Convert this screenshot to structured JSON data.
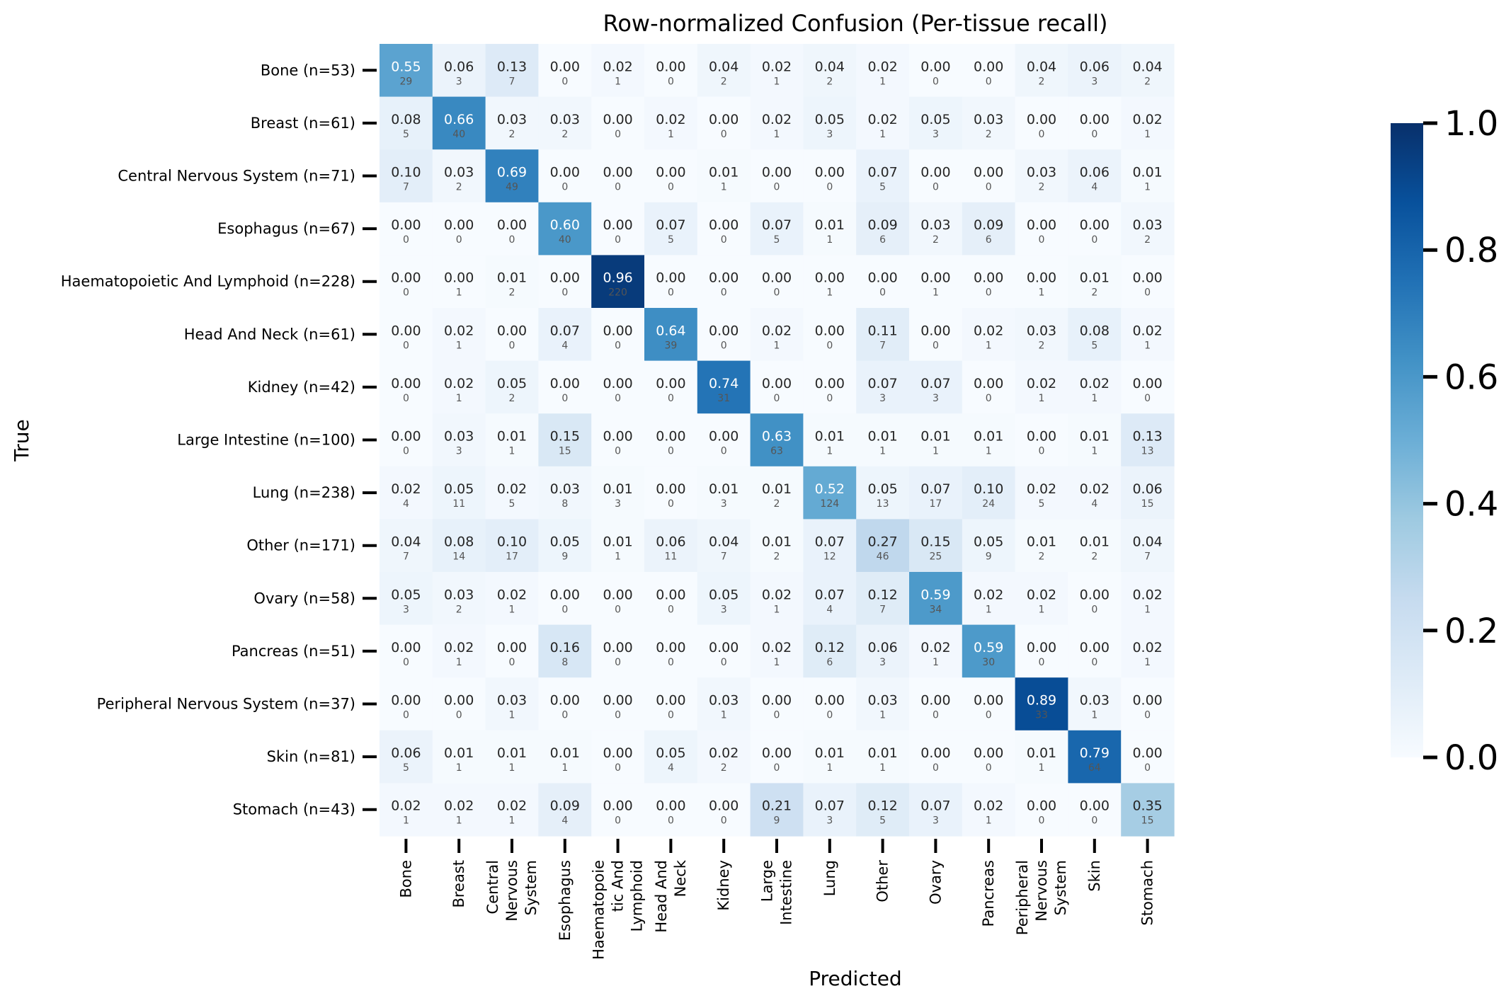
{
  "chart_data": {
    "type": "heatmap",
    "title": "Row-normalized Confusion (Per-tissue recall)",
    "xlabel": "Predicted",
    "ylabel": "True",
    "row_labels": [
      "Bone (n=53)",
      "Breast (n=61)",
      "Central Nervous System (n=71)",
      "Esophagus (n=67)",
      "Haematopoietic And Lymphoid (n=228)",
      "Head And Neck (n=61)",
      "Kidney (n=42)",
      "Large Intestine (n=100)",
      "Lung (n=238)",
      "Other (n=171)",
      "Ovary (n=58)",
      "Pancreas (n=51)",
      "Peripheral Nervous System (n=37)",
      "Skin (n=81)",
      "Stomach (n=43)"
    ],
    "col_labels": [
      [
        "Bone"
      ],
      [
        "Breast"
      ],
      [
        "Central",
        "Nervous",
        "System"
      ],
      [
        "Esophagus"
      ],
      [
        "Haematopoie",
        "tic And",
        "Lymphoid"
      ],
      [
        "Head And",
        "Neck"
      ],
      [
        "Kidney"
      ],
      [
        "Large",
        "Intestine"
      ],
      [
        "Lung"
      ],
      [
        "Other"
      ],
      [
        "Ovary"
      ],
      [
        "Pancreas"
      ],
      [
        "Peripheral",
        "Nervous",
        "System"
      ],
      [
        "Skin"
      ],
      [
        "Stomach"
      ]
    ],
    "values": [
      [
        0.55,
        0.06,
        0.13,
        0.0,
        0.02,
        0.0,
        0.04,
        0.02,
        0.04,
        0.02,
        0.0,
        0.0,
        0.04,
        0.06,
        0.04
      ],
      [
        0.08,
        0.66,
        0.03,
        0.03,
        0.0,
        0.02,
        0.0,
        0.02,
        0.05,
        0.02,
        0.05,
        0.03,
        0.0,
        0.0,
        0.02
      ],
      [
        0.1,
        0.03,
        0.69,
        0.0,
        0.0,
        0.0,
        0.01,
        0.0,
        0.0,
        0.07,
        0.0,
        0.0,
        0.03,
        0.06,
        0.01
      ],
      [
        0.0,
        0.0,
        0.0,
        0.6,
        0.0,
        0.07,
        0.0,
        0.07,
        0.01,
        0.09,
        0.03,
        0.09,
        0.0,
        0.0,
        0.03
      ],
      [
        0.0,
        0.0,
        0.01,
        0.0,
        0.96,
        0.0,
        0.0,
        0.0,
        0.0,
        0.0,
        0.0,
        0.0,
        0.0,
        0.01,
        0.0
      ],
      [
        0.0,
        0.02,
        0.0,
        0.07,
        0.0,
        0.64,
        0.0,
        0.02,
        0.0,
        0.11,
        0.0,
        0.02,
        0.03,
        0.08,
        0.02
      ],
      [
        0.0,
        0.02,
        0.05,
        0.0,
        0.0,
        0.0,
        0.74,
        0.0,
        0.0,
        0.07,
        0.07,
        0.0,
        0.02,
        0.02,
        0.0
      ],
      [
        0.0,
        0.03,
        0.01,
        0.15,
        0.0,
        0.0,
        0.0,
        0.63,
        0.01,
        0.01,
        0.01,
        0.01,
        0.0,
        0.01,
        0.13
      ],
      [
        0.02,
        0.05,
        0.02,
        0.03,
        0.01,
        0.0,
        0.01,
        0.01,
        0.52,
        0.05,
        0.07,
        0.1,
        0.02,
        0.02,
        0.06
      ],
      [
        0.04,
        0.08,
        0.1,
        0.05,
        0.01,
        0.06,
        0.04,
        0.01,
        0.07,
        0.27,
        0.15,
        0.05,
        0.01,
        0.01,
        0.04
      ],
      [
        0.05,
        0.03,
        0.02,
        0.0,
        0.0,
        0.0,
        0.05,
        0.02,
        0.07,
        0.12,
        0.59,
        0.02,
        0.02,
        0.0,
        0.02
      ],
      [
        0.0,
        0.02,
        0.0,
        0.16,
        0.0,
        0.0,
        0.0,
        0.02,
        0.12,
        0.06,
        0.02,
        0.59,
        0.0,
        0.0,
        0.02
      ],
      [
        0.0,
        0.0,
        0.03,
        0.0,
        0.0,
        0.0,
        0.03,
        0.0,
        0.0,
        0.03,
        0.0,
        0.0,
        0.89,
        0.03,
        0.0
      ],
      [
        0.06,
        0.01,
        0.01,
        0.01,
        0.0,
        0.05,
        0.02,
        0.0,
        0.01,
        0.01,
        0.0,
        0.0,
        0.01,
        0.79,
        0.0
      ],
      [
        0.02,
        0.02,
        0.02,
        0.09,
        0.0,
        0.0,
        0.0,
        0.21,
        0.07,
        0.12,
        0.07,
        0.02,
        0.0,
        0.0,
        0.35
      ]
    ],
    "counts": [
      [
        29,
        3,
        7,
        0,
        1,
        0,
        2,
        1,
        2,
        1,
        0,
        0,
        2,
        3,
        2
      ],
      [
        5,
        40,
        2,
        2,
        0,
        1,
        0,
        1,
        3,
        1,
        3,
        2,
        0,
        0,
        1
      ],
      [
        7,
        2,
        49,
        0,
        0,
        0,
        1,
        0,
        0,
        5,
        0,
        0,
        2,
        4,
        1
      ],
      [
        0,
        0,
        0,
        40,
        0,
        5,
        0,
        5,
        1,
        6,
        2,
        6,
        0,
        0,
        2
      ],
      [
        0,
        1,
        2,
        0,
        220,
        0,
        0,
        0,
        1,
        0,
        1,
        0,
        1,
        2,
        0
      ],
      [
        0,
        1,
        0,
        4,
        0,
        39,
        0,
        1,
        0,
        7,
        0,
        1,
        2,
        5,
        1
      ],
      [
        0,
        1,
        2,
        0,
        0,
        0,
        31,
        0,
        0,
        3,
        3,
        0,
        1,
        1,
        0
      ],
      [
        0,
        3,
        1,
        15,
        0,
        0,
        0,
        63,
        1,
        1,
        1,
        1,
        0,
        1,
        13
      ],
      [
        4,
        11,
        5,
        8,
        3,
        0,
        3,
        2,
        124,
        13,
        17,
        24,
        5,
        4,
        15
      ],
      [
        7,
        14,
        17,
        9,
        1,
        11,
        7,
        2,
        12,
        46,
        25,
        9,
        2,
        2,
        7
      ],
      [
        3,
        2,
        1,
        0,
        0,
        0,
        3,
        1,
        4,
        7,
        34,
        1,
        1,
        0,
        1
      ],
      [
        0,
        1,
        0,
        8,
        0,
        0,
        0,
        1,
        6,
        3,
        1,
        30,
        0,
        0,
        1
      ],
      [
        0,
        0,
        1,
        0,
        0,
        0,
        1,
        0,
        0,
        1,
        0,
        0,
        33,
        1,
        0
      ],
      [
        5,
        1,
        1,
        1,
        0,
        4,
        2,
        0,
        1,
        1,
        0,
        0,
        1,
        64,
        0
      ],
      [
        1,
        1,
        1,
        4,
        0,
        0,
        0,
        9,
        3,
        5,
        3,
        1,
        0,
        0,
        15
      ]
    ],
    "colorbar": {
      "colormap": "Blues",
      "range": [
        0.0,
        1.0
      ],
      "ticks": [
        "0.0",
        "0.2",
        "0.4",
        "0.6",
        "0.8",
        "1.0"
      ]
    },
    "legend": "colorbar right",
    "grid": false
  }
}
